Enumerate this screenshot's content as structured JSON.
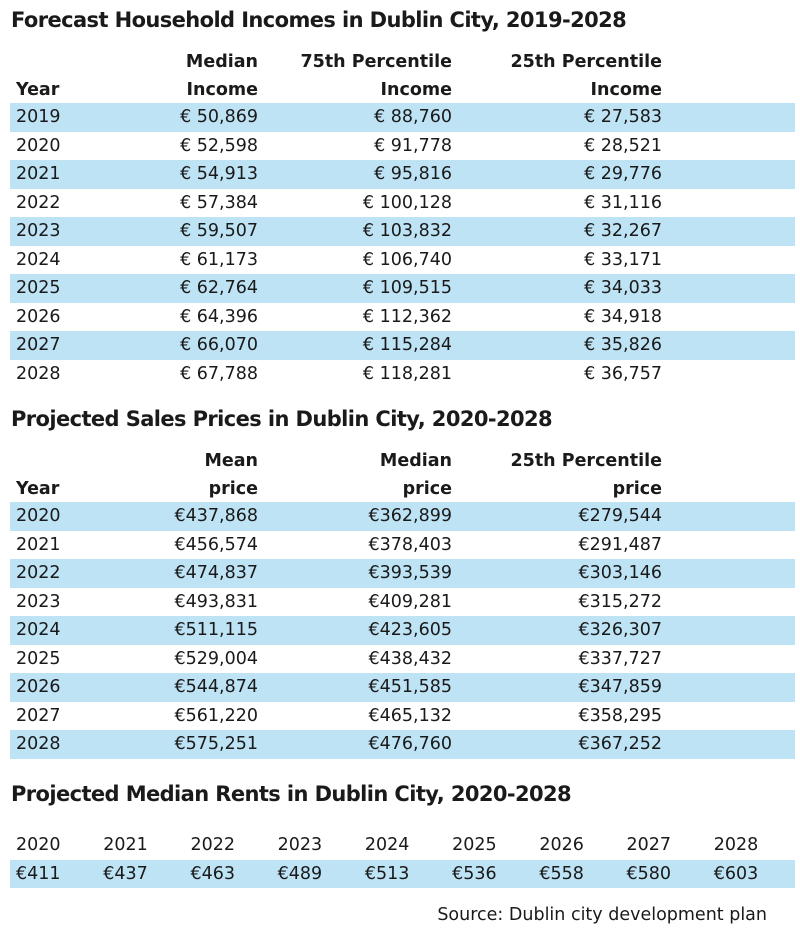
{
  "incomes": {
    "title": "Forecast Household Incomes in Dublin City, 2019-2028",
    "headers": {
      "year": "Year",
      "median_top": "Median",
      "median_bottom": "Income",
      "p75_top": "75th Percentile",
      "p75_bottom": "Income",
      "p25_top": "25th Percentile",
      "p25_bottom": "Income"
    },
    "rows": [
      [
        "2019",
        "€ 50,869",
        "€ 88,760",
        "€ 27,583"
      ],
      [
        "2020",
        "€ 52,598",
        "€ 91,778",
        "€ 28,521"
      ],
      [
        "2021",
        "€ 54,913",
        "€ 95,816",
        "€ 29,776"
      ],
      [
        "2022",
        "€ 57,384",
        "€ 100,128",
        "€ 31,116"
      ],
      [
        "2023",
        "€ 59,507",
        "€ 103,832",
        "€ 32,267"
      ],
      [
        "2024",
        "€ 61,173",
        "€ 106,740",
        "€ 33,171"
      ],
      [
        "2025",
        "€ 62,764",
        "€ 109,515",
        "€ 34,033"
      ],
      [
        "2026",
        "€ 64,396",
        "€ 112,362",
        "€ 34,918"
      ],
      [
        "2027",
        "€ 66,070",
        "€ 115,284",
        "€ 35,826"
      ],
      [
        "2028",
        "€ 67,788",
        "€ 118,281",
        "€ 36,757"
      ]
    ]
  },
  "prices": {
    "title": "Projected Sales Prices in Dublin City, 2020-2028",
    "headers": {
      "year": "Year",
      "mean_top": "Mean",
      "mean_bottom": "price",
      "median_top": "Median",
      "median_bottom": "price",
      "p25_top": "25th Percentile",
      "p25_bottom": "price"
    },
    "rows": [
      [
        "2020",
        "€437,868",
        "€362,899",
        "€279,544"
      ],
      [
        "2021",
        "€456,574",
        "€378,403",
        "€291,487"
      ],
      [
        "2022",
        "€474,837",
        "€393,539",
        "€303,146"
      ],
      [
        "2023",
        "€493,831",
        "€409,281",
        "€315,272"
      ],
      [
        "2024",
        "€511,115",
        "€423,605",
        "€326,307"
      ],
      [
        "2025",
        "€529,004",
        "€438,432",
        "€337,727"
      ],
      [
        "2026",
        "€544,874",
        "€451,585",
        "€347,859"
      ],
      [
        "2027",
        "€561,220",
        "€465,132",
        "€358,295"
      ],
      [
        "2028",
        "€575,251",
        "€476,760",
        "€367,252"
      ]
    ]
  },
  "rents": {
    "title": "Projected Median Rents in Dublin City, 2020-2028",
    "years": [
      "2020",
      "2021",
      "2022",
      "2023",
      "2024",
      "2025",
      "2026",
      "2027",
      "2028"
    ],
    "values": [
      "€411",
      "€437",
      "€463",
      "€489",
      "€513",
      "€536",
      "€558",
      "€580",
      "€603"
    ]
  },
  "source": "Source: Dublin city development plan",
  "colors": {
    "row_alt": "#bee3f5"
  }
}
